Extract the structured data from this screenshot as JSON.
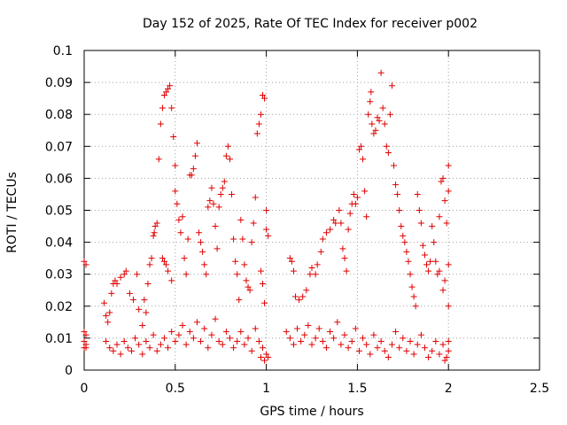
{
  "chart_data": {
    "type": "scatter",
    "title": "Day 152 of 2025, Rate Of TEC Index for receiver p002",
    "xlabel": "GPS time / hours",
    "ylabel": "ROTI / TECUs",
    "xlim": [
      0,
      2.5
    ],
    "ylim": [
      0,
      0.1
    ],
    "x_ticks": [
      "0",
      "0.5",
      "1",
      "1.5",
      "2",
      "2.5"
    ],
    "y_ticks": [
      "0",
      "0.01",
      "0.02",
      "0.03",
      "0.04",
      "0.05",
      "0.06",
      "0.07",
      "0.08",
      "0.09",
      "0.1"
    ],
    "grid": true,
    "marker": "+",
    "marker_color": "#e00000",
    "series": [
      {
        "points": [
          [
            0.0,
            0.034
          ],
          [
            0.01,
            0.033
          ],
          [
            0.0,
            0.012
          ],
          [
            0.01,
            0.011
          ],
          [
            0.0,
            0.009
          ],
          [
            0.01,
            0.008
          ],
          [
            0.0,
            0.007
          ],
          [
            0.01,
            0.007
          ],
          [
            0.11,
            0.021
          ],
          [
            0.12,
            0.017
          ],
          [
            0.13,
            0.015
          ],
          [
            0.14,
            0.018
          ],
          [
            0.15,
            0.024
          ],
          [
            0.16,
            0.027
          ],
          [
            0.17,
            0.028
          ],
          [
            0.18,
            0.027
          ],
          [
            0.2,
            0.029
          ],
          [
            0.22,
            0.03
          ],
          [
            0.23,
            0.031
          ],
          [
            0.25,
            0.024
          ],
          [
            0.27,
            0.022
          ],
          [
            0.29,
            0.03
          ],
          [
            0.3,
            0.019
          ],
          [
            0.32,
            0.014
          ],
          [
            0.33,
            0.022
          ],
          [
            0.34,
            0.018
          ],
          [
            0.35,
            0.027
          ],
          [
            0.36,
            0.033
          ],
          [
            0.37,
            0.035
          ],
          [
            0.38,
            0.042
          ],
          [
            0.385,
            0.043
          ],
          [
            0.39,
            0.045
          ],
          [
            0.4,
            0.046
          ],
          [
            0.41,
            0.066
          ],
          [
            0.42,
            0.077
          ],
          [
            0.43,
            0.082
          ],
          [
            0.44,
            0.086
          ],
          [
            0.45,
            0.087
          ],
          [
            0.46,
            0.088
          ],
          [
            0.47,
            0.089
          ],
          [
            0.48,
            0.082
          ],
          [
            0.43,
            0.035
          ],
          [
            0.44,
            0.034
          ],
          [
            0.45,
            0.033
          ],
          [
            0.46,
            0.031
          ],
          [
            0.48,
            0.028
          ],
          [
            0.49,
            0.073
          ],
          [
            0.5,
            0.064
          ],
          [
            0.5,
            0.056
          ],
          [
            0.51,
            0.052
          ],
          [
            0.52,
            0.047
          ],
          [
            0.53,
            0.043
          ],
          [
            0.54,
            0.048
          ],
          [
            0.55,
            0.035
          ],
          [
            0.56,
            0.03
          ],
          [
            0.57,
            0.041
          ],
          [
            0.58,
            0.061
          ],
          [
            0.59,
            0.061
          ],
          [
            0.6,
            0.063
          ],
          [
            0.61,
            0.067
          ],
          [
            0.62,
            0.071
          ],
          [
            0.63,
            0.043
          ],
          [
            0.64,
            0.04
          ],
          [
            0.65,
            0.037
          ],
          [
            0.66,
            0.033
          ],
          [
            0.67,
            0.03
          ],
          [
            0.68,
            0.051
          ],
          [
            0.69,
            0.053
          ],
          [
            0.7,
            0.057
          ],
          [
            0.71,
            0.052
          ],
          [
            0.72,
            0.045
          ],
          [
            0.73,
            0.038
          ],
          [
            0.74,
            0.051
          ],
          [
            0.75,
            0.055
          ],
          [
            0.76,
            0.057
          ],
          [
            0.77,
            0.059
          ],
          [
            0.78,
            0.067
          ],
          [
            0.79,
            0.07
          ],
          [
            0.8,
            0.066
          ],
          [
            0.81,
            0.055
          ],
          [
            0.82,
            0.041
          ],
          [
            0.83,
            0.034
          ],
          [
            0.84,
            0.03
          ],
          [
            0.85,
            0.022
          ],
          [
            0.86,
            0.047
          ],
          [
            0.87,
            0.041
          ],
          [
            0.88,
            0.033
          ],
          [
            0.89,
            0.028
          ],
          [
            0.9,
            0.026
          ],
          [
            0.91,
            0.025
          ],
          [
            0.92,
            0.04
          ],
          [
            0.93,
            0.046
          ],
          [
            0.94,
            0.054
          ],
          [
            0.95,
            0.074
          ],
          [
            0.96,
            0.077
          ],
          [
            0.97,
            0.08
          ],
          [
            0.98,
            0.086
          ],
          [
            0.99,
            0.085
          ],
          [
            1.0,
            0.05
          ],
          [
            1.0,
            0.044
          ],
          [
            1.01,
            0.042
          ],
          [
            0.97,
            0.031
          ],
          [
            0.98,
            0.027
          ],
          [
            0.99,
            0.021
          ],
          [
            1.13,
            0.035
          ],
          [
            1.14,
            0.034
          ],
          [
            1.15,
            0.031
          ],
          [
            1.16,
            0.023
          ],
          [
            1.18,
            0.022
          ],
          [
            1.2,
            0.023
          ],
          [
            1.22,
            0.025
          ],
          [
            1.24,
            0.03
          ],
          [
            1.25,
            0.032
          ],
          [
            1.27,
            0.03
          ],
          [
            1.28,
            0.033
          ],
          [
            1.3,
            0.037
          ],
          [
            1.31,
            0.041
          ],
          [
            1.33,
            0.043
          ],
          [
            1.35,
            0.044
          ],
          [
            1.37,
            0.047
          ],
          [
            1.38,
            0.046
          ],
          [
            1.4,
            0.05
          ],
          [
            1.41,
            0.046
          ],
          [
            1.42,
            0.038
          ],
          [
            1.43,
            0.035
          ],
          [
            1.44,
            0.031
          ],
          [
            1.45,
            0.044
          ],
          [
            1.46,
            0.049
          ],
          [
            1.47,
            0.052
          ],
          [
            1.48,
            0.055
          ],
          [
            1.49,
            0.052
          ],
          [
            1.5,
            0.054
          ],
          [
            1.51,
            0.069
          ],
          [
            1.52,
            0.07
          ],
          [
            1.53,
            0.066
          ],
          [
            1.54,
            0.056
          ],
          [
            1.55,
            0.048
          ],
          [
            1.56,
            0.08
          ],
          [
            1.57,
            0.084
          ],
          [
            1.575,
            0.087
          ],
          [
            1.58,
            0.077
          ],
          [
            1.59,
            0.074
          ],
          [
            1.6,
            0.075
          ],
          [
            1.61,
            0.079
          ],
          [
            1.62,
            0.078
          ],
          [
            1.63,
            0.093
          ],
          [
            1.64,
            0.082
          ],
          [
            1.65,
            0.077
          ],
          [
            1.66,
            0.07
          ],
          [
            1.67,
            0.068
          ],
          [
            1.68,
            0.08
          ],
          [
            1.69,
            0.089
          ],
          [
            1.7,
            0.064
          ],
          [
            1.71,
            0.058
          ],
          [
            1.72,
            0.055
          ],
          [
            1.73,
            0.05
          ],
          [
            1.74,
            0.045
          ],
          [
            1.75,
            0.042
          ],
          [
            1.76,
            0.04
          ],
          [
            1.77,
            0.037
          ],
          [
            1.78,
            0.034
          ],
          [
            1.79,
            0.03
          ],
          [
            1.8,
            0.026
          ],
          [
            1.81,
            0.023
          ],
          [
            1.82,
            0.02
          ],
          [
            1.83,
            0.055
          ],
          [
            1.84,
            0.05
          ],
          [
            1.85,
            0.046
          ],
          [
            1.86,
            0.039
          ],
          [
            1.87,
            0.036
          ],
          [
            1.88,
            0.033
          ],
          [
            1.89,
            0.031
          ],
          [
            1.9,
            0.034
          ],
          [
            1.91,
            0.045
          ],
          [
            1.92,
            0.04
          ],
          [
            1.93,
            0.034
          ],
          [
            1.94,
            0.03
          ],
          [
            1.95,
            0.048
          ],
          [
            1.96,
            0.059
          ],
          [
            1.97,
            0.06
          ],
          [
            1.98,
            0.053
          ],
          [
            1.99,
            0.046
          ],
          [
            2.0,
            0.064
          ],
          [
            2.0,
            0.056
          ],
          [
            2.0,
            0.033
          ],
          [
            2.0,
            0.02
          ],
          [
            1.98,
            0.028
          ],
          [
            1.97,
            0.025
          ],
          [
            1.95,
            0.031
          ],
          [
            0.12,
            0.009
          ],
          [
            0.14,
            0.007
          ],
          [
            0.16,
            0.006
          ],
          [
            0.18,
            0.008
          ],
          [
            0.2,
            0.005
          ],
          [
            0.22,
            0.009
          ],
          [
            0.24,
            0.007
          ],
          [
            0.26,
            0.006
          ],
          [
            0.28,
            0.01
          ],
          [
            0.3,
            0.008
          ],
          [
            0.32,
            0.005
          ],
          [
            0.34,
            0.009
          ],
          [
            0.36,
            0.007
          ],
          [
            0.38,
            0.011
          ],
          [
            0.4,
            0.006
          ],
          [
            0.42,
            0.008
          ],
          [
            0.44,
            0.01
          ],
          [
            0.46,
            0.007
          ],
          [
            0.48,
            0.012
          ],
          [
            0.5,
            0.009
          ],
          [
            0.52,
            0.011
          ],
          [
            0.54,
            0.014
          ],
          [
            0.56,
            0.008
          ],
          [
            0.58,
            0.012
          ],
          [
            0.6,
            0.01
          ],
          [
            0.62,
            0.015
          ],
          [
            0.64,
            0.009
          ],
          [
            0.66,
            0.013
          ],
          [
            0.68,
            0.007
          ],
          [
            0.7,
            0.011
          ],
          [
            0.72,
            0.016
          ],
          [
            0.74,
            0.009
          ],
          [
            0.76,
            0.008
          ],
          [
            0.78,
            0.012
          ],
          [
            0.8,
            0.01
          ],
          [
            0.82,
            0.007
          ],
          [
            0.84,
            0.009
          ],
          [
            0.86,
            0.012
          ],
          [
            0.88,
            0.008
          ],
          [
            0.9,
            0.01
          ],
          [
            0.92,
            0.006
          ],
          [
            0.94,
            0.013
          ],
          [
            0.96,
            0.009
          ],
          [
            0.98,
            0.007
          ],
          [
            1.0,
            0.005
          ],
          [
            1.01,
            0.004
          ],
          [
            0.99,
            0.003
          ],
          [
            0.97,
            0.004
          ],
          [
            1.11,
            0.012
          ],
          [
            1.13,
            0.01
          ],
          [
            1.15,
            0.008
          ],
          [
            1.17,
            0.013
          ],
          [
            1.19,
            0.009
          ],
          [
            1.21,
            0.011
          ],
          [
            1.23,
            0.014
          ],
          [
            1.25,
            0.008
          ],
          [
            1.27,
            0.01
          ],
          [
            1.29,
            0.013
          ],
          [
            1.31,
            0.009
          ],
          [
            1.33,
            0.007
          ],
          [
            1.35,
            0.012
          ],
          [
            1.37,
            0.01
          ],
          [
            1.39,
            0.015
          ],
          [
            1.41,
            0.008
          ],
          [
            1.43,
            0.011
          ],
          [
            1.45,
            0.007
          ],
          [
            1.47,
            0.009
          ],
          [
            1.49,
            0.013
          ],
          [
            1.51,
            0.006
          ],
          [
            1.53,
            0.01
          ],
          [
            1.55,
            0.008
          ],
          [
            1.57,
            0.005
          ],
          [
            1.59,
            0.011
          ],
          [
            1.61,
            0.007
          ],
          [
            1.63,
            0.009
          ],
          [
            1.65,
            0.006
          ],
          [
            1.67,
            0.004
          ],
          [
            1.69,
            0.008
          ],
          [
            1.71,
            0.012
          ],
          [
            1.73,
            0.007
          ],
          [
            1.75,
            0.01
          ],
          [
            1.77,
            0.006
          ],
          [
            1.79,
            0.009
          ],
          [
            1.81,
            0.005
          ],
          [
            1.83,
            0.008
          ],
          [
            1.85,
            0.011
          ],
          [
            1.87,
            0.007
          ],
          [
            1.89,
            0.004
          ],
          [
            1.91,
            0.006
          ],
          [
            1.93,
            0.009
          ],
          [
            1.95,
            0.005
          ],
          [
            1.97,
            0.008
          ],
          [
            1.99,
            0.004
          ],
          [
            2.0,
            0.006
          ],
          [
            2.0,
            0.009
          ],
          [
            1.98,
            0.003
          ]
        ]
      }
    ]
  }
}
